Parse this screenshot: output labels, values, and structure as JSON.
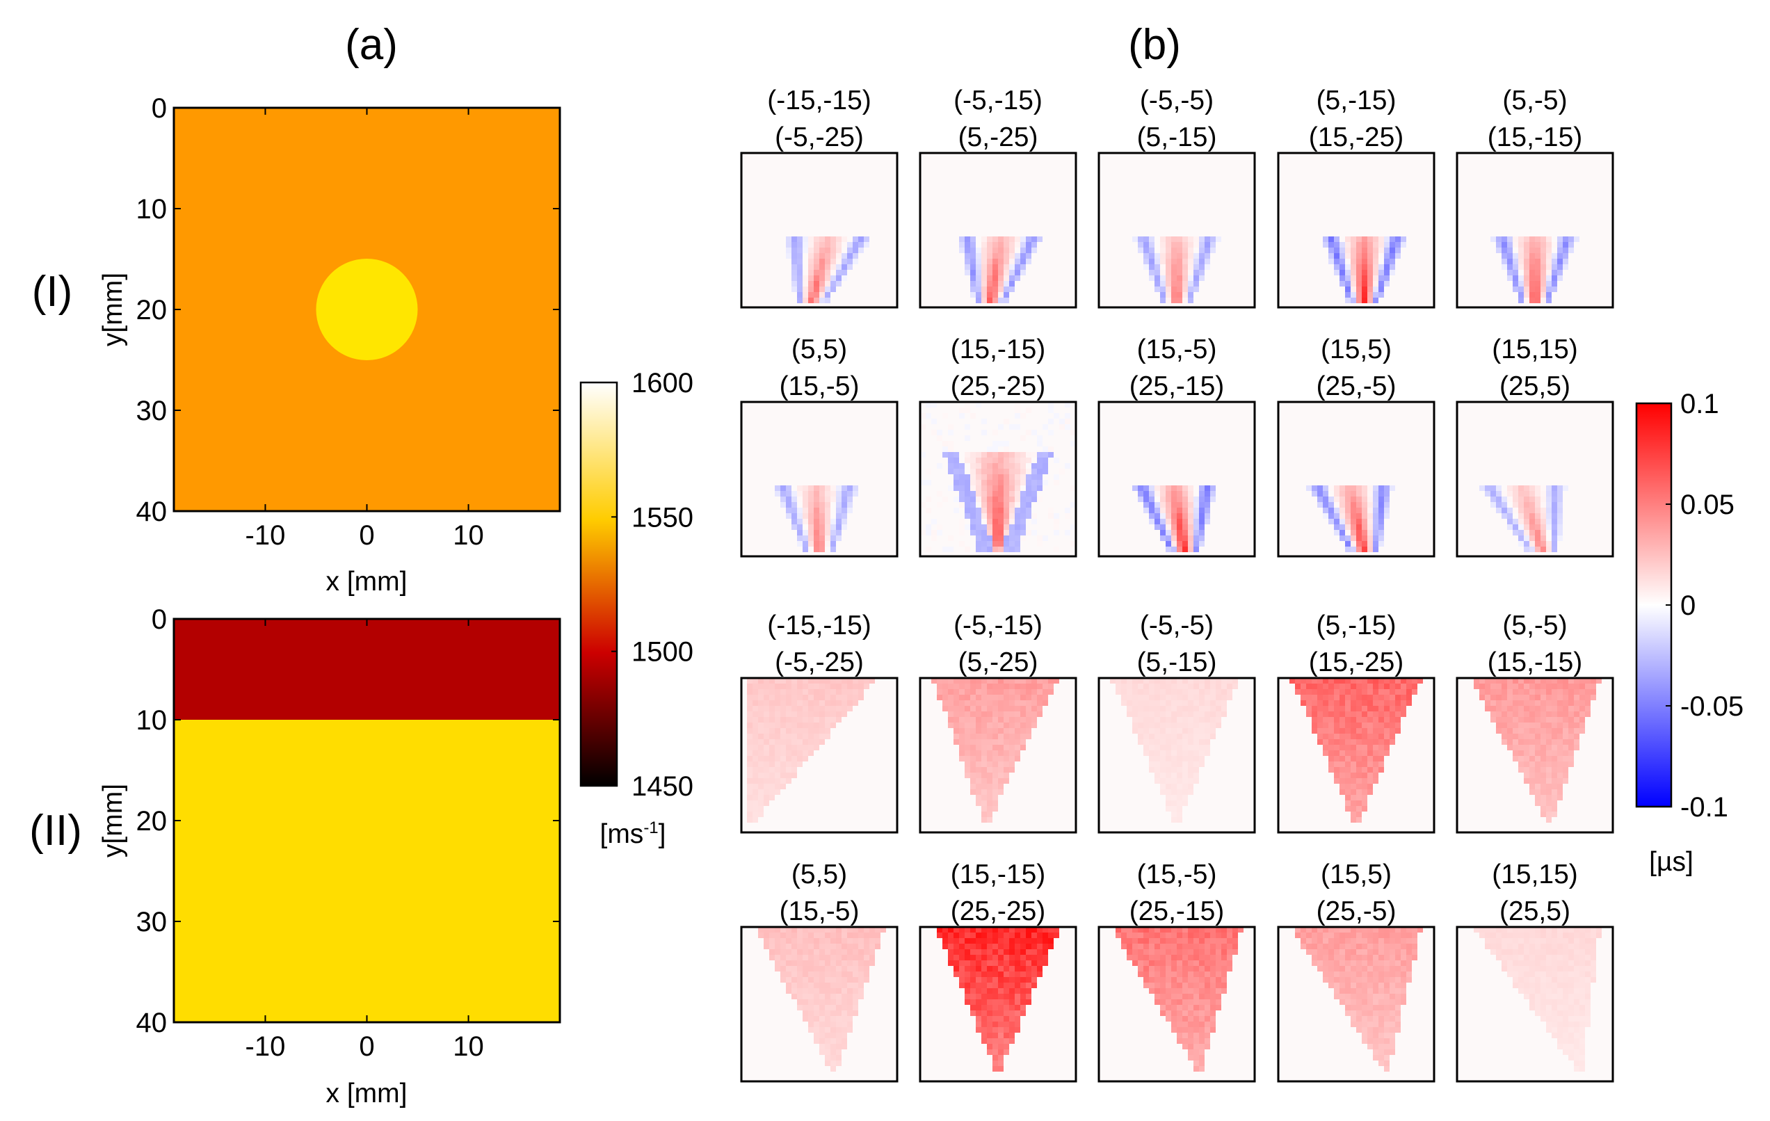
{
  "panel_labels": {
    "a": "(a)",
    "b": "(b)",
    "row_I": "(I)",
    "row_II": "(II)"
  },
  "chart_data": [
    {
      "type": "heatmap",
      "name": "sound-speed-map-I",
      "xlabel": "x [mm]",
      "ylabel": "y[mm]",
      "xticks": [
        "-10",
        "0",
        "10"
      ],
      "yticks": [
        "0",
        "10",
        "20",
        "30",
        "40"
      ],
      "xlim": [
        -19,
        19
      ],
      "ylim": [
        0,
        40
      ],
      "background_value": 1530,
      "background_color": "#ff9900",
      "inclusion": {
        "shape": "circle",
        "center_x": 0,
        "center_y": 20,
        "radius": 5,
        "value": 1560,
        "color": "#ffe600"
      }
    },
    {
      "type": "heatmap",
      "name": "sound-speed-map-II",
      "xlabel": "x [mm]",
      "ylabel": "y[mm]",
      "xticks": [
        "-10",
        "0",
        "10"
      ],
      "yticks": [
        "0",
        "10",
        "20",
        "30",
        "40"
      ],
      "xlim": [
        -19,
        19
      ],
      "ylim": [
        0,
        40
      ],
      "layers": [
        {
          "y_from": 0,
          "y_to": 10,
          "value": 1495,
          "color": "#b30000"
        },
        {
          "y_from": 10,
          "y_to": 40,
          "value": 1565,
          "color": "#ffdd00"
        }
      ]
    },
    {
      "type": "colorbar",
      "name": "sound-speed-colorbar",
      "ticks": [
        "1600",
        "1550",
        "1500",
        "1450"
      ],
      "range": [
        1450,
        1600
      ],
      "unit_main": "[ms",
      "unit_sup": "-1",
      "unit_end": "]"
    },
    {
      "type": "colorbar",
      "name": "time-difference-colorbar",
      "ticks": [
        "0.1",
        "0.05",
        "0",
        "-0.05",
        "-0.1"
      ],
      "range": [
        -0.1,
        0.1
      ],
      "unit": "[µs]"
    },
    {
      "type": "heatmap",
      "name": "time-difference-grid",
      "groups": [
        {
          "group": "I",
          "panels": [
            {
              "line1": "(-15,-15)",
              "line2": "(-5,-25)",
              "pattern": "cone",
              "apex": 0.45,
              "skew": -0.25,
              "amp": 0.7
            },
            {
              "line1": "(-5,-15)",
              "line2": "(5,-25)",
              "pattern": "cone",
              "apex": 0.45,
              "skew": -0.15,
              "amp": 0.8
            },
            {
              "line1": "(-5,-5)",
              "line2": "(5,-15)",
              "pattern": "cone",
              "apex": 0.5,
              "skew": 0.0,
              "amp": 0.7
            },
            {
              "line1": "(5,-15)",
              "line2": "(15,-25)",
              "pattern": "cone",
              "apex": 0.55,
              "skew": 0.0,
              "amp": 1.0
            },
            {
              "line1": "(5,-5)",
              "line2": "(15,-15)",
              "pattern": "cone",
              "apex": 0.5,
              "skew": 0.0,
              "amp": 0.85
            },
            {
              "line1": "(5,5)",
              "line2": "(15,-5)",
              "pattern": "cone",
              "apex": 0.5,
              "skew": 0.05,
              "amp": 0.65
            },
            {
              "line1": "(15,-15)",
              "line2": "(25,-25)",
              "pattern": "vee",
              "apex": 0.5,
              "skew": 0.0,
              "amp": 0.9
            },
            {
              "line1": "(15,-5)",
              "line2": "(25,-15)",
              "pattern": "cone",
              "apex": 0.55,
              "skew": 0.15,
              "amp": 1.0
            },
            {
              "line1": "(15,5)",
              "line2": "(25,-5)",
              "pattern": "cone",
              "apex": 0.55,
              "skew": 0.2,
              "amp": 0.9
            },
            {
              "line1": "(15,15)",
              "line2": "(25,5)",
              "pattern": "cone",
              "apex": 0.55,
              "skew": 0.3,
              "amp": 0.6
            }
          ]
        },
        {
          "group": "II",
          "panels": [
            {
              "line1": "(-15,-15)",
              "line2": "(-5,-25)",
              "pattern": "wedge",
              "left": 0.05,
              "right": 0.88,
              "apex": 0.05,
              "amp": 0.22
            },
            {
              "line1": "(-5,-15)",
              "line2": "(5,-25)",
              "pattern": "wedge",
              "left": 0.08,
              "right": 0.9,
              "apex": 0.42,
              "amp": 0.38
            },
            {
              "line1": "(-5,-5)",
              "line2": "(5,-15)",
              "pattern": "wedge",
              "left": 0.08,
              "right": 0.9,
              "apex": 0.5,
              "amp": 0.15
            },
            {
              "line1": "(5,-15)",
              "line2": "(15,-25)",
              "pattern": "wedge",
              "left": 0.08,
              "right": 0.92,
              "apex": 0.5,
              "amp": 0.6
            },
            {
              "line1": "(5,-5)",
              "line2": "(15,-15)",
              "pattern": "wedge",
              "left": 0.08,
              "right": 0.92,
              "apex": 0.6,
              "amp": 0.4
            },
            {
              "line1": "(5,5)",
              "line2": "(15,-5)",
              "pattern": "wedge",
              "left": 0.08,
              "right": 0.92,
              "apex": 0.6,
              "amp": 0.25
            },
            {
              "line1": "(15,-15)",
              "line2": "(25,-25)",
              "pattern": "wedge",
              "left": 0.1,
              "right": 0.9,
              "apex": 0.5,
              "amp": 0.85
            },
            {
              "line1": "(15,-5)",
              "line2": "(25,-15)",
              "pattern": "wedge",
              "left": 0.08,
              "right": 0.92,
              "apex": 0.65,
              "amp": 0.55
            },
            {
              "line1": "(15,5)",
              "line2": "(25,-5)",
              "pattern": "wedge",
              "left": 0.08,
              "right": 0.92,
              "apex": 0.7,
              "amp": 0.38
            },
            {
              "line1": "(15,15)",
              "line2": "(25,5)",
              "pattern": "wedge",
              "left": 0.1,
              "right": 0.92,
              "apex": 0.8,
              "amp": 0.15
            }
          ]
        }
      ]
    }
  ]
}
